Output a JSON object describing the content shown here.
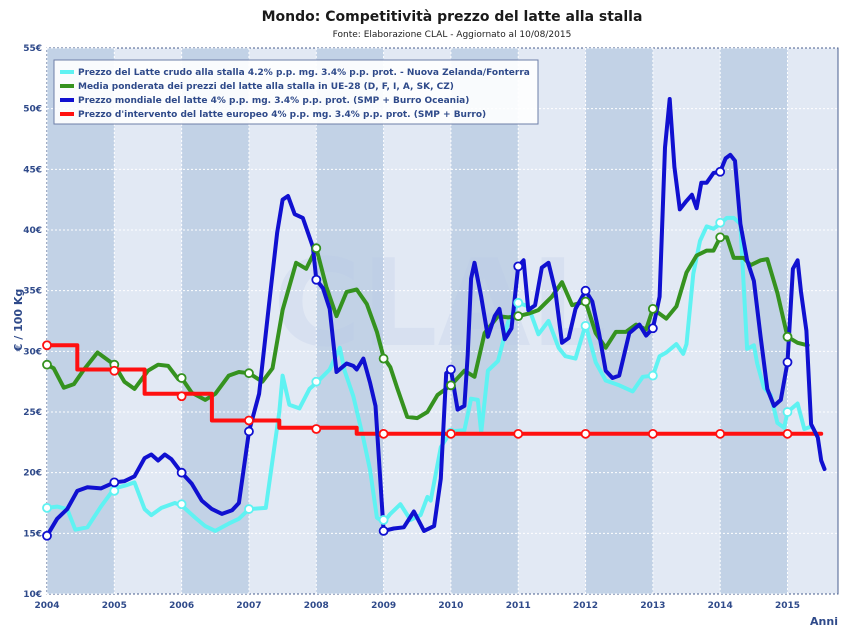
{
  "chart_data": {
    "type": "line",
    "title": "Mondo: Competitività prezzo del latte alla stalla",
    "subtitle": "Fonte: Elaborazione CLAL - Aggiornato al 10/08/2015",
    "ylabel": "€ / 100 Kg",
    "xlabel": "Anni",
    "ylim": [
      10,
      55
    ],
    "xlim": [
      2004,
      2015.75
    ],
    "y_ticks": [
      "10€",
      "15€",
      "20€",
      "25€",
      "30€",
      "35€",
      "40€",
      "45€",
      "50€",
      "55€"
    ],
    "x_ticks": [
      "2004",
      "2005",
      "2006",
      "2007",
      "2008",
      "2009",
      "2010",
      "2011",
      "2012",
      "2013",
      "2014",
      "2015"
    ],
    "series": [
      {
        "name": "Prezzo del Latte crudo alla stalla 4.2% p.p. mg. 3.4% p.p. prot. - Nuova Zelanda/Fonterra",
        "color": "#5ff2f2",
        "x": [
          2004.0,
          2004.15,
          2004.3,
          2004.42,
          2004.6,
          2004.8,
          2005.0,
          2005.2,
          2005.3,
          2005.45,
          2005.55,
          2005.7,
          2005.9,
          2006.0,
          2006.2,
          2006.35,
          2006.5,
          2006.7,
          2006.85,
          2007.0,
          2007.25,
          2007.45,
          2007.5,
          2007.6,
          2007.75,
          2007.9,
          2008.0,
          2008.2,
          2008.35,
          2008.42,
          2008.55,
          2008.7,
          2008.8,
          2008.9,
          2009.0,
          2009.1,
          2009.25,
          2009.4,
          2009.55,
          2009.65,
          2009.7,
          2009.85,
          2010.0,
          2010.2,
          2010.3,
          2010.4,
          2010.45,
          2010.55,
          2010.7,
          2010.85,
          2011.0,
          2011.15,
          2011.3,
          2011.45,
          2011.6,
          2011.7,
          2011.85,
          2012.0,
          2012.15,
          2012.3,
          2012.5,
          2012.7,
          2012.85,
          2013.0,
          2013.1,
          2013.2,
          2013.35,
          2013.45,
          2013.5,
          2013.6,
          2013.7,
          2013.8,
          2013.9,
          2014.0,
          2014.1,
          2014.2,
          2014.3,
          2014.4,
          2014.5,
          2014.55,
          2014.65,
          2014.75,
          2014.85,
          2014.95,
          2015.0,
          2015.15,
          2015.25,
          2015.35
        ],
        "values": [
          17.1,
          17.2,
          17.0,
          15.3,
          15.5,
          17.2,
          18.7,
          19.0,
          19.2,
          17.0,
          16.5,
          17.1,
          17.5,
          17.3,
          16.3,
          15.6,
          15.2,
          15.8,
          16.2,
          17.0,
          17.1,
          25.0,
          28.0,
          25.6,
          25.3,
          26.9,
          27.4,
          28.5,
          30.3,
          28.4,
          26.3,
          22.8,
          20.2,
          16.3,
          15.9,
          16.6,
          17.4,
          16.1,
          16.5,
          18.0,
          17.7,
          22.1,
          23.4,
          23.5,
          26.1,
          26.0,
          23.3,
          28.4,
          29.2,
          32.4,
          34.0,
          33.7,
          31.4,
          32.5,
          30.3,
          29.6,
          29.4,
          32.2,
          29.1,
          27.6,
          27.2,
          26.7,
          27.9,
          28.0,
          29.6,
          29.9,
          30.6,
          29.8,
          30.6,
          36.4,
          39.1,
          40.3,
          40.1,
          40.5,
          41.0,
          41.0,
          40.5,
          30.2,
          30.5,
          29.0,
          27.0,
          26.4,
          24.1,
          23.7,
          25.0,
          25.7,
          23.6,
          23.8
        ]
      },
      {
        "name": "Media ponderata dei prezzi del latte alla stalla in UE-28 (D, F, I, A, SK, CZ)",
        "color": "#35921f",
        "x": [
          2004.0,
          2004.1,
          2004.25,
          2004.4,
          2004.55,
          2004.75,
          2005.0,
          2005.15,
          2005.3,
          2005.5,
          2005.65,
          2005.8,
          2005.95,
          2006.0,
          2006.15,
          2006.35,
          2006.5,
          2006.7,
          2006.85,
          2007.0,
          2007.2,
          2007.35,
          2007.5,
          2007.7,
          2007.85,
          2008.0,
          2008.15,
          2008.3,
          2008.45,
          2008.6,
          2008.75,
          2008.9,
          2009.0,
          2009.1,
          2009.2,
          2009.35,
          2009.5,
          2009.65,
          2009.8,
          2010.0,
          2010.2,
          2010.35,
          2010.5,
          2010.7,
          2010.85,
          2011.0,
          2011.15,
          2011.3,
          2011.5,
          2011.65,
          2011.8,
          2012.0,
          2012.15,
          2012.3,
          2012.45,
          2012.6,
          2012.75,
          2012.9,
          2013.0,
          2013.2,
          2013.35,
          2013.5,
          2013.65,
          2013.8,
          2013.9,
          2014.0,
          2014.1,
          2014.2,
          2014.35,
          2014.45,
          2014.6,
          2014.7,
          2014.85,
          2015.0,
          2015.15,
          2015.3
        ],
        "values": [
          28.9,
          28.6,
          27.0,
          27.3,
          28.5,
          29.9,
          28.9,
          27.5,
          26.9,
          28.4,
          28.9,
          28.8,
          27.7,
          27.8,
          26.6,
          26.0,
          26.5,
          28.0,
          28.3,
          28.2,
          27.5,
          28.6,
          33.4,
          37.3,
          36.8,
          38.5,
          35.3,
          32.9,
          34.9,
          35.1,
          33.9,
          31.6,
          29.5,
          28.7,
          27.0,
          24.6,
          24.5,
          25.0,
          26.4,
          27.2,
          28.4,
          27.9,
          31.5,
          32.9,
          32.8,
          32.9,
          33.1,
          33.4,
          34.5,
          35.7,
          33.8,
          34.1,
          31.5,
          30.3,
          31.6,
          31.6,
          32.2,
          31.8,
          33.5,
          32.7,
          33.7,
          36.5,
          37.9,
          38.3,
          38.3,
          39.4,
          39.4,
          37.7,
          37.7,
          37.1,
          37.5,
          37.6,
          34.8,
          31.2,
          30.7,
          30.5
        ]
      },
      {
        "name": "Prezzo mondiale del latte 4% p.p. mg. 3.4% p.p. prot. (SMP + Burro Oceania)",
        "color": "#1010d0",
        "x": [
          2004.0,
          2004.15,
          2004.3,
          2004.45,
          2004.6,
          2004.8,
          2005.0,
          2005.15,
          2005.3,
          2005.45,
          2005.55,
          2005.65,
          2005.75,
          2005.85,
          2006.0,
          2006.15,
          2006.3,
          2006.45,
          2006.6,
          2006.75,
          2006.85,
          2007.0,
          2007.15,
          2007.3,
          2007.42,
          2007.5,
          2007.58,
          2007.68,
          2007.8,
          2007.95,
          2008.0,
          2008.1,
          2008.2,
          2008.3,
          2008.45,
          2008.55,
          2008.6,
          2008.7,
          2008.8,
          2008.88,
          2009.0,
          2009.15,
          2009.3,
          2009.45,
          2009.6,
          2009.75,
          2009.85,
          2009.93,
          2010.0,
          2010.1,
          2010.2,
          2010.25,
          2010.3,
          2010.35,
          2010.45,
          2010.55,
          2010.65,
          2010.72,
          2010.8,
          2010.9,
          2011.0,
          2011.08,
          2011.15,
          2011.25,
          2011.35,
          2011.45,
          2011.55,
          2011.65,
          2011.75,
          2011.85,
          2012.0,
          2012.1,
          2012.2,
          2012.3,
          2012.4,
          2012.5,
          2012.65,
          2012.8,
          2012.9,
          2013.0,
          2013.1,
          2013.18,
          2013.25,
          2013.32,
          2013.4,
          2013.5,
          2013.58,
          2013.65,
          2013.72,
          2013.8,
          2013.9,
          2014.0,
          2014.08,
          2014.15,
          2014.22,
          2014.3,
          2014.4,
          2014.5,
          2014.6,
          2014.7,
          2014.8,
          2014.9,
          2015.0,
          2015.08,
          2015.15,
          2015.2,
          2015.28,
          2015.35,
          2015.45,
          2015.5,
          2015.55
        ],
        "values": [
          14.8,
          16.2,
          17.0,
          18.5,
          18.8,
          18.7,
          19.2,
          19.3,
          19.7,
          21.2,
          21.5,
          21.0,
          21.5,
          21.1,
          20.0,
          19.1,
          17.7,
          17.0,
          16.6,
          16.9,
          17.5,
          23.4,
          26.5,
          34.0,
          39.8,
          42.5,
          42.8,
          41.3,
          41.0,
          38.6,
          35.9,
          35.2,
          33.5,
          28.3,
          29.0,
          28.8,
          28.5,
          29.4,
          27.4,
          25.5,
          15.2,
          15.4,
          15.5,
          16.8,
          15.2,
          15.6,
          19.5,
          28.2,
          28.5,
          25.2,
          25.5,
          29.7,
          36.0,
          37.3,
          34.5,
          31.2,
          32.9,
          33.5,
          31.0,
          31.9,
          37.0,
          37.5,
          33.4,
          33.8,
          36.9,
          37.3,
          35.0,
          30.7,
          31.1,
          33.5,
          35.0,
          34.1,
          31.5,
          28.4,
          27.8,
          28.0,
          31.5,
          32.2,
          31.3,
          31.9,
          34.5,
          46.8,
          50.8,
          45.2,
          41.7,
          42.4,
          42.9,
          41.8,
          43.9,
          43.9,
          44.7,
          44.8,
          45.9,
          46.2,
          45.7,
          40.5,
          37.5,
          35.8,
          31.2,
          26.9,
          25.5,
          26.0,
          29.1,
          36.8,
          37.5,
          34.9,
          31.7,
          24.0,
          22.9,
          21.0,
          20.3
        ]
      },
      {
        "name": "Prezzo d'intervento del latte europeo 4% p.p. mg. 3.4% p.p. prot. (SMP + Burro)",
        "color": "#ff1010",
        "x": [
          2004.0,
          2004.45,
          2004.45,
          2005.45,
          2005.45,
          2006.45,
          2006.45,
          2007.45,
          2007.45,
          2008.6,
          2008.6,
          2015.5
        ],
        "values": [
          30.5,
          30.5,
          28.5,
          28.5,
          26.5,
          26.5,
          24.3,
          24.3,
          23.7,
          23.7,
          23.2,
          23.2
        ]
      }
    ],
    "markers": {
      "x": [
        2004,
        2005,
        2006,
        2007,
        2008,
        2009,
        2010,
        2011,
        2012,
        2013,
        2014,
        2015
      ],
      "values": [
        [
          17.1,
          18.5,
          17.4,
          17.0,
          27.5,
          16.1,
          23.3,
          34.0,
          32.1,
          28.0,
          40.6,
          25.0
        ],
        [
          28.9,
          28.9,
          27.8,
          28.2,
          38.5,
          29.4,
          27.2,
          32.9,
          34.1,
          33.5,
          39.4,
          31.2
        ],
        [
          14.8,
          19.2,
          20.0,
          23.4,
          35.9,
          15.2,
          28.5,
          37.0,
          35.0,
          31.9,
          44.8,
          29.1
        ],
        [
          30.5,
          28.4,
          26.3,
          24.3,
          23.6,
          23.2,
          23.2,
          23.2,
          23.2,
          23.2,
          23.2,
          23.2
        ]
      ]
    },
    "legend_position": "top-left",
    "grid": true
  }
}
